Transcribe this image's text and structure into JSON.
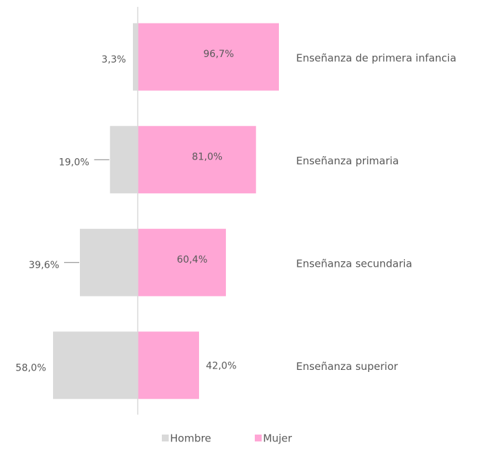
{
  "chart_data": {
    "type": "diverging_bar",
    "categories": [
      "Enseñanza de primera infancia",
      "Enseñanza primaria",
      "Enseñanza secundaria",
      "Enseñanza superior"
    ],
    "series": [
      {
        "name": "Hombre",
        "color": "#d9d9d9",
        "values": [
          3.3,
          19.0,
          39.6,
          58.0
        ],
        "value_labels": [
          "3,3%",
          "19,0%",
          "39,6%",
          "58,0%"
        ]
      },
      {
        "name": "Mujer",
        "color": "#ffa6d5",
        "values": [
          96.7,
          81.0,
          60.4,
          42.0
        ],
        "value_labels": [
          "96,7%",
          "81,0%",
          "60,4%",
          "42,0%"
        ]
      }
    ],
    "legend": "bottom"
  }
}
